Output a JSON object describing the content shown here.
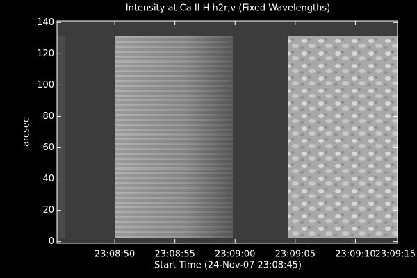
{
  "chart_data": {
    "type": "image",
    "title": "Intensity at Ca II H h2r,v (Fixed Wavelengths)",
    "xlabel": "Start Time (24-Nov-07 23:08:45)",
    "ylabel": "arcsec",
    "xlim": [
      0.2,
      28.5
    ],
    "xticks": [
      {
        "value": 5,
        "label": "23:08:50"
      },
      {
        "value": 10,
        "label": "23:08:55"
      },
      {
        "value": 15,
        "label": "23:09:00"
      },
      {
        "value": 20,
        "label": "23:09:05"
      },
      {
        "value": 25,
        "label": "23:09:10"
      },
      {
        "value": 30,
        "label": "23:09:15"
      }
    ],
    "ylim": [
      -1,
      141
    ],
    "yticks": [
      0,
      20,
      40,
      60,
      80,
      100,
      120,
      140
    ]
  }
}
